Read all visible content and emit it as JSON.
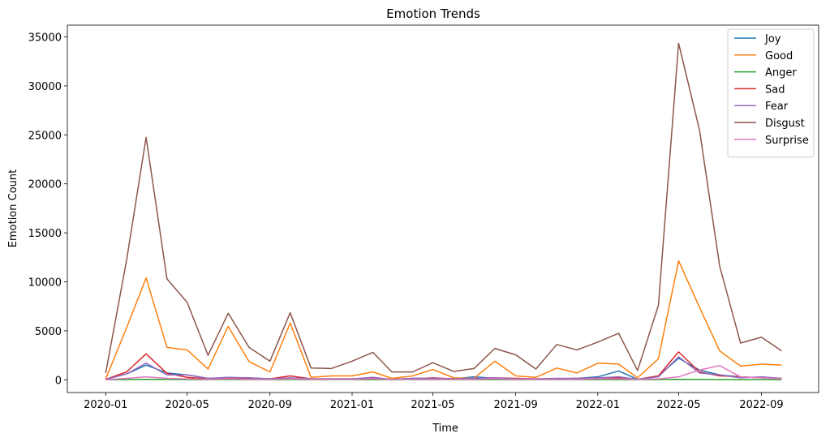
{
  "chart_data": {
    "type": "line",
    "title": "Emotion Trends",
    "xlabel": "Time",
    "ylabel": "Emotion Count",
    "x": [
      "2020-01",
      "2020-02",
      "2020-03",
      "2020-04",
      "2020-05",
      "2020-06",
      "2020-07",
      "2020-08",
      "2020-09",
      "2020-10",
      "2020-11",
      "2020-12",
      "2021-01",
      "2021-02",
      "2021-03",
      "2021-04",
      "2021-05",
      "2021-06",
      "2021-07",
      "2021-08",
      "2021-09",
      "2021-10",
      "2021-11",
      "2021-12",
      "2022-01",
      "2022-02",
      "2022-03",
      "2022-04",
      "2022-05",
      "2022-06",
      "2022-07",
      "2022-08",
      "2022-09",
      "2022-10"
    ],
    "x_ticks": [
      "2020-01",
      "2020-05",
      "2020-09",
      "2021-01",
      "2021-05",
      "2021-09",
      "2022-01",
      "2022-05",
      "2022-09"
    ],
    "y_ticks": [
      0,
      5000,
      10000,
      15000,
      20000,
      25000,
      30000,
      35000
    ],
    "ylim": [
      -1300,
      36200
    ],
    "xlim": [
      "2019-11-05",
      "2022-11-25"
    ],
    "grid": false,
    "legend_position": "top-right",
    "series": [
      {
        "name": "Joy",
        "color": "#1f77b4",
        "values": [
          50,
          600,
          1500,
          700,
          500,
          150,
          200,
          200,
          100,
          100,
          50,
          50,
          100,
          200,
          50,
          150,
          150,
          100,
          300,
          150,
          100,
          50,
          100,
          150,
          300,
          900,
          50,
          400,
          2200,
          1000,
          500,
          300,
          200,
          100
        ]
      },
      {
        "name": "Good",
        "color": "#ff7f0e",
        "values": [
          100,
          5300,
          10400,
          3300,
          3050,
          1100,
          5450,
          1850,
          800,
          5800,
          250,
          400,
          400,
          800,
          150,
          400,
          1050,
          200,
          150,
          1900,
          400,
          250,
          1200,
          700,
          1700,
          1600,
          200,
          2150,
          12150,
          7400,
          2950,
          1400,
          1600,
          1500
        ]
      },
      {
        "name": "Anger",
        "color": "#2ca02c",
        "values": [
          0,
          20,
          50,
          30,
          20,
          10,
          20,
          10,
          10,
          20,
          10,
          10,
          10,
          10,
          10,
          10,
          10,
          10,
          10,
          10,
          10,
          10,
          10,
          10,
          10,
          10,
          10,
          20,
          50,
          30,
          20,
          10,
          10,
          10
        ]
      },
      {
        "name": "Sad",
        "color": "#d62728",
        "values": [
          50,
          800,
          2650,
          650,
          250,
          100,
          150,
          150,
          100,
          400,
          100,
          100,
          100,
          150,
          50,
          100,
          200,
          100,
          100,
          200,
          150,
          100,
          100,
          150,
          200,
          200,
          50,
          400,
          2850,
          800,
          400,
          300,
          200,
          150
        ]
      },
      {
        "name": "Fear",
        "color": "#9467bd",
        "values": [
          50,
          600,
          1700,
          500,
          500,
          150,
          250,
          200,
          100,
          200,
          100,
          100,
          100,
          250,
          50,
          150,
          150,
          100,
          150,
          200,
          100,
          100,
          150,
          150,
          200,
          300,
          50,
          300,
          2350,
          700,
          500,
          200,
          300,
          150
        ]
      },
      {
        "name": "Disgust",
        "color": "#8c564b",
        "values": [
          700,
          12200,
          24750,
          10300,
          7900,
          2500,
          6800,
          3300,
          1900,
          6850,
          1200,
          1150,
          1900,
          2800,
          800,
          800,
          1750,
          850,
          1150,
          3200,
          2550,
          1100,
          3600,
          3050,
          3850,
          4750,
          950,
          7600,
          34350,
          25500,
          11600,
          3750,
          4350,
          2950
        ]
      },
      {
        "name": "Surprise",
        "color": "#e377c2",
        "values": [
          0,
          150,
          300,
          150,
          100,
          50,
          100,
          50,
          50,
          100,
          50,
          50,
          50,
          100,
          50,
          50,
          50,
          50,
          50,
          100,
          50,
          50,
          50,
          50,
          100,
          100,
          50,
          100,
          300,
          1000,
          1450,
          300,
          200,
          100
        ]
      }
    ]
  }
}
